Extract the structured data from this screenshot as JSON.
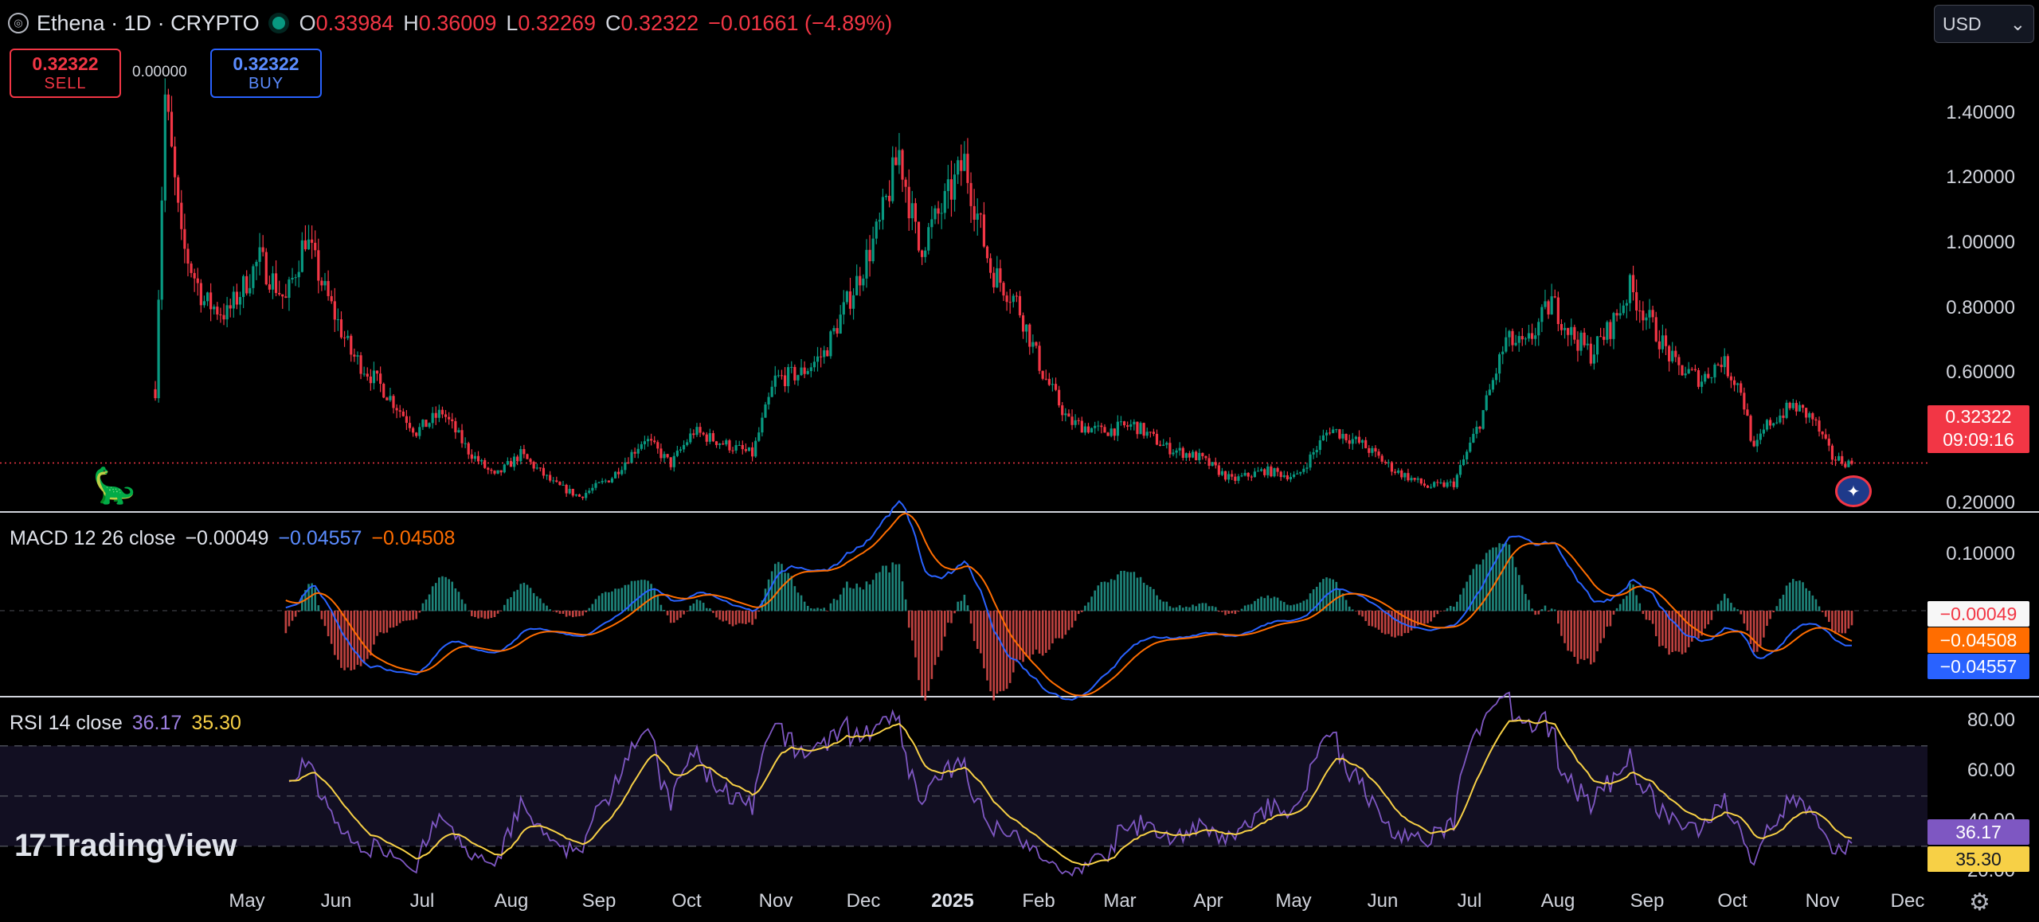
{
  "header": {
    "title": "Ethena · 1D · CRYPTO",
    "ohlc": [
      {
        "k": "O",
        "v": "0.33984"
      },
      {
        "k": "H",
        "v": "0.36009"
      },
      {
        "k": "L",
        "v": "0.32269"
      },
      {
        "k": "C",
        "v": "0.32322"
      }
    ],
    "change": "−0.01661 (−4.89%)",
    "currency": "USD"
  },
  "trade": {
    "sell_price": "0.32322",
    "sell_label": "SELL",
    "buy_price": "0.32322",
    "buy_label": "BUY",
    "spread": "0.00000"
  },
  "price_tag": {
    "price": "0.32322",
    "countdown": "09:09:16"
  },
  "macd": {
    "label": "MACD 12 26 close",
    "hist": "−0.00049",
    "macd": "−0.04557",
    "signal": "−0.04508",
    "tags": [
      "−0.00049",
      "−0.04508",
      "−0.04557"
    ]
  },
  "rsi": {
    "label": "RSI 14 close",
    "rsi": "36.17",
    "ma": "35.30",
    "tags": [
      "36.17",
      "35.30"
    ]
  },
  "brand": "TradingView",
  "colors": {
    "up": "#089981",
    "down": "#f23645",
    "macd": "#2962ff",
    "signal": "#ff6d00",
    "rsi": "#7e57c2",
    "rsi_ma": "#f7d046"
  },
  "chart_data": {
    "type": "candlestick",
    "x_axis": [
      "May",
      "Jun",
      "Jul",
      "Aug",
      "Sep",
      "Oct",
      "Nov",
      "Dec",
      "2025",
      "Feb",
      "Mar",
      "Apr",
      "May",
      "Jun",
      "Jul",
      "Aug",
      "Sep",
      "Oct",
      "Nov",
      "Dec"
    ],
    "y_axis": [
      "1.40000",
      "1.20000",
      "1.00000",
      "0.80000",
      "0.60000",
      "0.40000",
      "0.20000"
    ],
    "ylim": [
      0.18,
      1.6
    ],
    "close_path": [
      [
        0,
        0.55
      ],
      [
        3,
        1.45
      ],
      [
        8,
        1.0
      ],
      [
        15,
        0.82
      ],
      [
        22,
        0.78
      ],
      [
        32,
        0.95
      ],
      [
        40,
        0.82
      ],
      [
        46,
        1.02
      ],
      [
        52,
        0.85
      ],
      [
        60,
        0.66
      ],
      [
        70,
        0.55
      ],
      [
        80,
        0.42
      ],
      [
        88,
        0.48
      ],
      [
        96,
        0.36
      ],
      [
        104,
        0.28
      ],
      [
        112,
        0.35
      ],
      [
        122,
        0.26
      ],
      [
        130,
        0.22
      ],
      [
        140,
        0.28
      ],
      [
        150,
        0.4
      ],
      [
        158,
        0.32
      ],
      [
        165,
        0.42
      ],
      [
        175,
        0.38
      ],
      [
        183,
        0.35
      ],
      [
        190,
        0.58
      ],
      [
        198,
        0.6
      ],
      [
        205,
        0.66
      ],
      [
        215,
        0.88
      ],
      [
        222,
        1.05
      ],
      [
        228,
        1.28
      ],
      [
        234,
        0.98
      ],
      [
        242,
        1.12
      ],
      [
        248,
        1.25
      ],
      [
        256,
        0.92
      ],
      [
        264,
        0.82
      ],
      [
        272,
        0.6
      ],
      [
        280,
        0.45
      ],
      [
        290,
        0.42
      ],
      [
        300,
        0.44
      ],
      [
        310,
        0.37
      ],
      [
        320,
        0.34
      ],
      [
        330,
        0.27
      ],
      [
        340,
        0.3
      ],
      [
        350,
        0.28
      ],
      [
        360,
        0.43
      ],
      [
        370,
        0.38
      ],
      [
        380,
        0.3
      ],
      [
        390,
        0.25
      ],
      [
        398,
        0.26
      ],
      [
        406,
        0.45
      ],
      [
        414,
        0.7
      ],
      [
        420,
        0.68
      ],
      [
        428,
        0.82
      ],
      [
        434,
        0.72
      ],
      [
        440,
        0.66
      ],
      [
        446,
        0.74
      ],
      [
        452,
        0.86
      ],
      [
        458,
        0.76
      ],
      [
        466,
        0.62
      ],
      [
        474,
        0.58
      ],
      [
        480,
        0.64
      ],
      [
        486,
        0.55
      ],
      [
        490,
        0.36
      ],
      [
        494,
        0.44
      ],
      [
        502,
        0.5
      ],
      [
        508,
        0.46
      ],
      [
        514,
        0.34
      ],
      [
        520,
        0.32
      ]
    ],
    "n_days": 520,
    "macd_yaxis": [
      "0.10000"
    ],
    "macd_ylim": [
      -0.12,
      0.13
    ],
    "rsi_yaxis": [
      "80.00",
      "60.00",
      "40.00",
      "20.00"
    ],
    "rsi_ylim": [
      15,
      88
    ],
    "rsi_bands": [
      70,
      50,
      30
    ]
  }
}
